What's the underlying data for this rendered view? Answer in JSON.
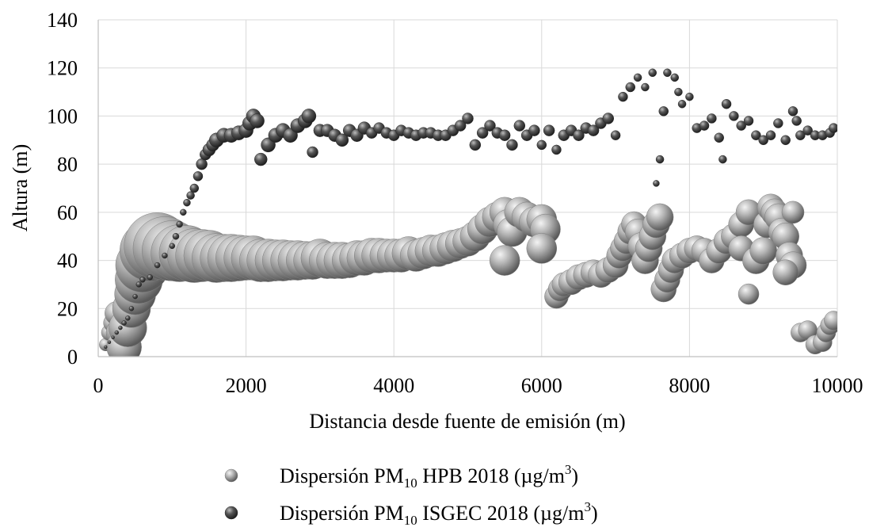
{
  "chart_data": {
    "type": "scatter",
    "title": "",
    "xlabel": "Distancia desde fuente de emisión (m)",
    "ylabel": "Altura  (m)",
    "xlim": [
      0,
      10000
    ],
    "ylim": [
      0,
      140
    ],
    "xticks": [
      0,
      2000,
      4000,
      6000,
      8000,
      10000
    ],
    "yticks": [
      0,
      20,
      40,
      60,
      80,
      100,
      120,
      140
    ],
    "grid": true,
    "legend_position": "bottom",
    "series": [
      {
        "name": "Dispersión PM10 HPB 2018 (µg/m3)",
        "legend": {
          "pre": "Dispersión PM",
          "sub": "10",
          "mid": " HPB 2018 (µg/m",
          "sup": "3",
          "post": ")"
        },
        "color": "#a6a6a6",
        "points": [
          [
            100,
            5,
            8
          ],
          [
            150,
            10,
            10
          ],
          [
            200,
            14,
            12
          ],
          [
            250,
            18,
            15
          ],
          [
            300,
            10,
            18
          ],
          [
            350,
            4,
            22
          ],
          [
            400,
            12,
            24
          ],
          [
            450,
            20,
            24
          ],
          [
            500,
            26,
            26
          ],
          [
            550,
            32,
            30
          ],
          [
            600,
            38,
            34
          ],
          [
            700,
            44,
            38
          ],
          [
            800,
            46,
            42
          ],
          [
            900,
            45,
            40
          ],
          [
            1000,
            44,
            38
          ],
          [
            1100,
            43,
            36
          ],
          [
            1200,
            43,
            35
          ],
          [
            1300,
            42,
            34
          ],
          [
            1400,
            42,
            33
          ],
          [
            1500,
            42,
            32
          ],
          [
            1600,
            41,
            31
          ],
          [
            1700,
            41,
            30
          ],
          [
            1800,
            41,
            30
          ],
          [
            1900,
            41,
            29
          ],
          [
            2000,
            41,
            28
          ],
          [
            2100,
            41,
            28
          ],
          [
            2200,
            40,
            27
          ],
          [
            2300,
            40,
            27
          ],
          [
            2400,
            40,
            26
          ],
          [
            2500,
            40,
            26
          ],
          [
            2600,
            40,
            25
          ],
          [
            2700,
            40,
            25
          ],
          [
            2800,
            40,
            24
          ],
          [
            2900,
            40,
            24
          ],
          [
            3000,
            41,
            24
          ],
          [
            3100,
            40,
            23
          ],
          [
            3200,
            40,
            23
          ],
          [
            3300,
            40,
            23
          ],
          [
            3400,
            40,
            22
          ],
          [
            3500,
            41,
            22
          ],
          [
            3600,
            41,
            22
          ],
          [
            3700,
            42,
            22
          ],
          [
            3800,
            42,
            22
          ],
          [
            3900,
            42,
            21
          ],
          [
            4000,
            42,
            21
          ],
          [
            4100,
            42,
            21
          ],
          [
            4200,
            43,
            21
          ],
          [
            4300,
            42,
            20
          ],
          [
            4400,
            43,
            20
          ],
          [
            4500,
            44,
            20
          ],
          [
            4600,
            44,
            20
          ],
          [
            4700,
            45,
            20
          ],
          [
            4800,
            46,
            20
          ],
          [
            4900,
            47,
            19
          ],
          [
            5000,
            48,
            19
          ],
          [
            5100,
            50,
            19
          ],
          [
            5200,
            53,
            19
          ],
          [
            5300,
            56,
            19
          ],
          [
            5400,
            58,
            19
          ],
          [
            5500,
            60,
            19
          ],
          [
            5550,
            55,
            19
          ],
          [
            5600,
            52,
            19
          ],
          [
            5500,
            40,
            19
          ],
          [
            5700,
            60,
            19
          ],
          [
            5800,
            58,
            19
          ],
          [
            5900,
            56,
            19
          ],
          [
            6000,
            57,
            19
          ],
          [
            6050,
            53,
            19
          ],
          [
            6000,
            45,
            19
          ],
          [
            6200,
            25,
            15
          ],
          [
            6250,
            28,
            15
          ],
          [
            6300,
            30,
            15
          ],
          [
            6400,
            31,
            16
          ],
          [
            6500,
            33,
            16
          ],
          [
            6600,
            34,
            16
          ],
          [
            6700,
            35,
            16
          ],
          [
            6800,
            34,
            16
          ],
          [
            6900,
            36,
            16
          ],
          [
            7000,
            38,
            16
          ],
          [
            7050,
            42,
            16
          ],
          [
            7100,
            45,
            16
          ],
          [
            7150,
            48,
            16
          ],
          [
            7200,
            52,
            16
          ],
          [
            7250,
            55,
            16
          ],
          [
            7300,
            52,
            16
          ],
          [
            7350,
            46,
            17
          ],
          [
            7400,
            40,
            17
          ],
          [
            7450,
            45,
            17
          ],
          [
            7500,
            50,
            17
          ],
          [
            7550,
            55,
            17
          ],
          [
            7600,
            58,
            17
          ],
          [
            7650,
            28,
            16
          ],
          [
            7700,
            32,
            16
          ],
          [
            7750,
            36,
            16
          ],
          [
            7800,
            40,
            16
          ],
          [
            7900,
            42,
            16
          ],
          [
            8000,
            44,
            16
          ],
          [
            8100,
            45,
            16
          ],
          [
            8200,
            44,
            16
          ],
          [
            8300,
            40,
            16
          ],
          [
            8400,
            44,
            16
          ],
          [
            8500,
            48,
            16
          ],
          [
            8600,
            50,
            16
          ],
          [
            8700,
            55,
            16
          ],
          [
            8800,
            60,
            16
          ],
          [
            8700,
            45,
            16
          ],
          [
            8800,
            26,
            13
          ],
          [
            8900,
            40,
            17
          ],
          [
            9000,
            44,
            17
          ],
          [
            9050,
            55,
            17
          ],
          [
            9100,
            62,
            17
          ],
          [
            9150,
            60,
            17
          ],
          [
            9200,
            58,
            17
          ],
          [
            9250,
            52,
            17
          ],
          [
            9300,
            50,
            17
          ],
          [
            9350,
            42,
            17
          ],
          [
            9400,
            38,
            17
          ],
          [
            9300,
            35,
            16
          ],
          [
            9400,
            60,
            14
          ],
          [
            9500,
            10,
            12
          ],
          [
            9600,
            11,
            12
          ],
          [
            9700,
            5,
            12
          ],
          [
            9800,
            6,
            12
          ],
          [
            9850,
            10,
            12
          ],
          [
            9900,
            13,
            12
          ],
          [
            9950,
            15,
            12
          ]
        ]
      },
      {
        "name": "Dispersión PM10 ISGEC 2018 (µg/m3)",
        "legend": {
          "pre": "Dispersión PM",
          "sub": "10",
          "mid": " ISGEC 2018 (µg/m",
          "sup": "3",
          "post": ")"
        },
        "color": "#555555",
        "points": [
          [
            100,
            4,
            2
          ],
          [
            150,
            6,
            2
          ],
          [
            200,
            8,
            2
          ],
          [
            250,
            10,
            2.5
          ],
          [
            300,
            12,
            2.5
          ],
          [
            350,
            14,
            3
          ],
          [
            400,
            16,
            3
          ],
          [
            450,
            20,
            3
          ],
          [
            500,
            25,
            3
          ],
          [
            550,
            30,
            3.5
          ],
          [
            600,
            32,
            3.5
          ],
          [
            700,
            33,
            3.5
          ],
          [
            800,
            38,
            3.5
          ],
          [
            900,
            42,
            3.5
          ],
          [
            1000,
            46,
            3.5
          ],
          [
            1050,
            50,
            4
          ],
          [
            1100,
            55,
            4
          ],
          [
            1150,
            60,
            4
          ],
          [
            1200,
            64,
            4.5
          ],
          [
            1250,
            67,
            5
          ],
          [
            1300,
            70,
            5.5
          ],
          [
            1350,
            75,
            6
          ],
          [
            1400,
            80,
            7
          ],
          [
            1450,
            84,
            7
          ],
          [
            1500,
            86,
            8
          ],
          [
            1550,
            88,
            8
          ],
          [
            1600,
            90,
            9
          ],
          [
            1700,
            92,
            9
          ],
          [
            1800,
            92,
            9
          ],
          [
            1900,
            93,
            9
          ],
          [
            2000,
            94,
            9
          ],
          [
            2050,
            97,
            9
          ],
          [
            2100,
            100,
            9
          ],
          [
            2150,
            98,
            9
          ],
          [
            2200,
            82,
            8
          ],
          [
            2300,
            88,
            9
          ],
          [
            2400,
            92,
            9
          ],
          [
            2500,
            94,
            9
          ],
          [
            2600,
            92,
            9
          ],
          [
            2700,
            96,
            9
          ],
          [
            2800,
            98,
            9
          ],
          [
            2850,
            100,
            9
          ],
          [
            2900,
            85,
            7
          ],
          [
            3000,
            94,
            8
          ],
          [
            3100,
            94,
            8
          ],
          [
            3200,
            92,
            8
          ],
          [
            3300,
            90,
            8
          ],
          [
            3400,
            94,
            8
          ],
          [
            3500,
            92,
            8
          ],
          [
            3600,
            95,
            8
          ],
          [
            3700,
            93,
            7
          ],
          [
            3800,
            95,
            7
          ],
          [
            3900,
            93,
            7
          ],
          [
            4000,
            92,
            7
          ],
          [
            4100,
            94,
            7
          ],
          [
            4200,
            93,
            7
          ],
          [
            4300,
            92,
            7
          ],
          [
            4400,
            93,
            7
          ],
          [
            4500,
            93,
            7
          ],
          [
            4600,
            92,
            7
          ],
          [
            4700,
            92,
            7
          ],
          [
            4800,
            94,
            7
          ],
          [
            4900,
            96,
            7
          ],
          [
            5000,
            99,
            7
          ],
          [
            5100,
            88,
            7
          ],
          [
            5200,
            93,
            7
          ],
          [
            5300,
            96,
            7
          ],
          [
            5400,
            93,
            7
          ],
          [
            5500,
            92,
            7
          ],
          [
            5600,
            88,
            7
          ],
          [
            5700,
            96,
            7
          ],
          [
            5800,
            92,
            7
          ],
          [
            5900,
            94,
            7
          ],
          [
            6000,
            88,
            6
          ],
          [
            6100,
            94,
            7
          ],
          [
            6200,
            86,
            6
          ],
          [
            6300,
            92,
            7
          ],
          [
            6400,
            94,
            7
          ],
          [
            6500,
            92,
            7
          ],
          [
            6600,
            95,
            7
          ],
          [
            6700,
            94,
            7
          ],
          [
            6800,
            97,
            7
          ],
          [
            6900,
            99,
            7
          ],
          [
            7000,
            92,
            6
          ],
          [
            7100,
            108,
            6
          ],
          [
            7200,
            112,
            6
          ],
          [
            7300,
            116,
            5
          ],
          [
            7400,
            112,
            5
          ],
          [
            7500,
            118,
            5
          ],
          [
            7550,
            72,
            4
          ],
          [
            7600,
            82,
            5
          ],
          [
            7650,
            102,
            6
          ],
          [
            7700,
            118,
            5
          ],
          [
            7800,
            116,
            5
          ],
          [
            7850,
            110,
            5
          ],
          [
            7900,
            105,
            5
          ],
          [
            8000,
            108,
            5
          ],
          [
            8100,
            95,
            6
          ],
          [
            8200,
            96,
            6
          ],
          [
            8300,
            99,
            6
          ],
          [
            8400,
            91,
            6
          ],
          [
            8450,
            82,
            5
          ],
          [
            8500,
            105,
            6
          ],
          [
            8600,
            100,
            6
          ],
          [
            8700,
            96,
            6
          ],
          [
            8800,
            98,
            6
          ],
          [
            8900,
            92,
            6
          ],
          [
            9000,
            90,
            6
          ],
          [
            9100,
            92,
            6
          ],
          [
            9200,
            97,
            6
          ],
          [
            9300,
            90,
            6
          ],
          [
            9400,
            102,
            6
          ],
          [
            9450,
            98,
            6
          ],
          [
            9500,
            92,
            6
          ],
          [
            9600,
            94,
            6
          ],
          [
            9700,
            92,
            6
          ],
          [
            9800,
            92,
            6
          ],
          [
            9900,
            93,
            6
          ],
          [
            9950,
            95,
            6
          ]
        ]
      }
    ]
  }
}
